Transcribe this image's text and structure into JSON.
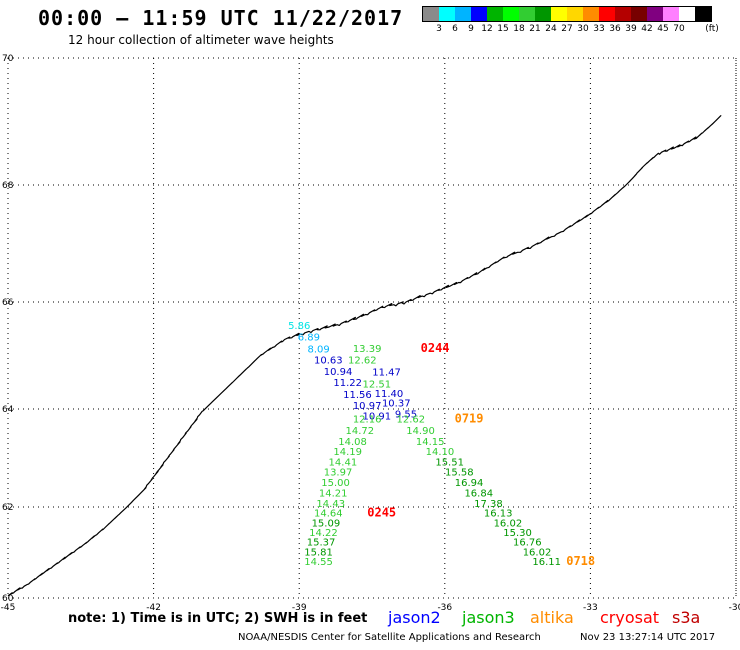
{
  "header": {
    "title": "00:00 – 11:59 UTC 11/22/2017",
    "subtitle": "12 hour collection of altimeter wave heights"
  },
  "color_scale": {
    "unit": "(ft)",
    "colors": [
      "#8a8a8a",
      "#00ffff",
      "#00b4ff",
      "#0000ff",
      "#00b400",
      "#00ff00",
      "#32cd32",
      "#009600",
      "#ffff00",
      "#ffd700",
      "#ff8c00",
      "#ff0000",
      "#b40000",
      "#780000",
      "#800080",
      "#ff80ff",
      "#ffffff",
      "#000000"
    ],
    "labels": [
      "3",
      "6",
      "9",
      "12",
      "15",
      "18",
      "21",
      "24",
      "27",
      "30",
      "33",
      "36",
      "39",
      "42",
      "45",
      "70"
    ]
  },
  "axes": {
    "lat_labels": [
      "70",
      "68",
      "66",
      "64",
      "62",
      "60"
    ],
    "lon_labels": [
      "-45",
      "-42",
      "-39",
      "-36",
      "-33",
      "-30"
    ]
  },
  "tracks": [
    {
      "satellite": "jason2",
      "time": "0244",
      "time_color": "#ff0000",
      "points": [
        {
          "lat": 65.5,
          "lon": -39.0,
          "v": "5.86",
          "c": "#00e5e5"
        },
        {
          "lat": 65.28,
          "lon": -38.8,
          "v": "6.89",
          "c": "#00b4ff"
        },
        {
          "lat": 65.06,
          "lon": -38.6,
          "v": "8.09",
          "c": "#00b4ff"
        },
        {
          "lat": 64.85,
          "lon": -38.4,
          "v": "10.63",
          "c": "#0000c8"
        },
        {
          "lat": 64.64,
          "lon": -38.2,
          "v": "10.94",
          "c": "#0000c8"
        },
        {
          "lat": 64.43,
          "lon": -38.0,
          "v": "11.22",
          "c": "#0000c8"
        },
        {
          "lat": 64.21,
          "lon": -37.8,
          "v": "11.56",
          "c": "#0000c8"
        },
        {
          "lat": 64.0,
          "lon": -37.6,
          "v": "10.97",
          "c": "#0000c8"
        },
        {
          "lat": 63.79,
          "lon": -37.4,
          "v": "10.91",
          "c": "#0000c8"
        },
        {
          "lat": 63.83,
          "lon": -36.8,
          "v": "9.55",
          "c": "#0000c8"
        },
        {
          "lat": 64.05,
          "lon": -37.0,
          "v": "10.37",
          "c": "#0000c8"
        },
        {
          "lat": 64.22,
          "lon": -37.15,
          "v": "11.40",
          "c": "#0000c8"
        },
        {
          "lat": 64.63,
          "lon": -37.2,
          "v": "11.47",
          "c": "#0000c8"
        }
      ]
    },
    {
      "satellite": "jason3",
      "time": "0245",
      "time_color": "#ff0000",
      "points": [
        {
          "lat": 65.07,
          "lon": -37.6,
          "v": "13.39",
          "c": "#32cd32"
        },
        {
          "lat": 64.85,
          "lon": -37.7,
          "v": "12.62",
          "c": "#32cd32"
        },
        {
          "lat": 64.4,
          "lon": -37.4,
          "v": "12.51",
          "c": "#32cd32"
        },
        {
          "lat": 63.72,
          "lon": -37.6,
          "v": "12.16",
          "c": "#32cd32"
        },
        {
          "lat": 63.49,
          "lon": -37.75,
          "v": "14.72",
          "c": "#32cd32"
        },
        {
          "lat": 63.27,
          "lon": -37.9,
          "v": "14.08",
          "c": "#32cd32"
        },
        {
          "lat": 63.06,
          "lon": -38.0,
          "v": "14.19",
          "c": "#32cd32"
        },
        {
          "lat": 62.85,
          "lon": -38.1,
          "v": "14.41",
          "c": "#32cd32"
        },
        {
          "lat": 62.64,
          "lon": -38.2,
          "v": "13.97",
          "c": "#32cd32"
        },
        {
          "lat": 62.43,
          "lon": -38.25,
          "v": "15.00",
          "c": "#32cd32"
        },
        {
          "lat": 62.21,
          "lon": -38.3,
          "v": "14.21",
          "c": "#32cd32"
        },
        {
          "lat": 62.0,
          "lon": -38.35,
          "v": "14.43",
          "c": "#32cd32"
        },
        {
          "lat": 61.79,
          "lon": -38.4,
          "v": "14.64",
          "c": "#32cd32"
        },
        {
          "lat": 61.57,
          "lon": -38.45,
          "v": "15.09",
          "c": "#009600"
        },
        {
          "lat": 61.36,
          "lon": -38.5,
          "v": "14.22",
          "c": "#32cd32"
        },
        {
          "lat": 61.15,
          "lon": -38.55,
          "v": "15.37",
          "c": "#009600"
        },
        {
          "lat": 60.93,
          "lon": -38.6,
          "v": "15.81",
          "c": "#009600"
        },
        {
          "lat": 60.72,
          "lon": -38.6,
          "v": "14.55",
          "c": "#32cd32"
        }
      ]
    },
    {
      "satellite": "altika",
      "time": "0719",
      "time_color": "#ff8c00",
      "points": [
        {
          "lat": 63.72,
          "lon": -36.7,
          "v": "12.62",
          "c": "#32cd32"
        },
        {
          "lat": 63.49,
          "lon": -36.5,
          "v": "14.90",
          "c": "#32cd32"
        },
        {
          "lat": 63.27,
          "lon": -36.3,
          "v": "14.15",
          "c": "#32cd32"
        },
        {
          "lat": 63.06,
          "lon": -36.1,
          "v": "14.10",
          "c": "#32cd32"
        },
        {
          "lat": 62.85,
          "lon": -35.9,
          "v": "15.51",
          "c": "#009600"
        },
        {
          "lat": 62.64,
          "lon": -35.7,
          "v": "15.58",
          "c": "#009600"
        },
        {
          "lat": 62.43,
          "lon": -35.5,
          "v": "16.94",
          "c": "#009600"
        },
        {
          "lat": 62.21,
          "lon": -35.3,
          "v": "16.84",
          "c": "#009600"
        },
        {
          "lat": 62.0,
          "lon": -35.1,
          "v": "17.38",
          "c": "#009600"
        },
        {
          "lat": 61.79,
          "lon": -34.9,
          "v": "16.13",
          "c": "#009600"
        },
        {
          "lat": 61.57,
          "lon": -34.7,
          "v": "16.02",
          "c": "#009600"
        },
        {
          "lat": 61.36,
          "lon": -34.5,
          "v": "15.30",
          "c": "#009600"
        },
        {
          "lat": 61.15,
          "lon": -34.3,
          "v": "16.76",
          "c": "#009600"
        },
        {
          "lat": 60.93,
          "lon": -34.1,
          "v": "16.02",
          "c": "#009600"
        },
        {
          "lat": 60.72,
          "lon": -33.9,
          "v": "16.11",
          "c": "#009600"
        }
      ]
    },
    {
      "satellite": "altika",
      "time": "0718",
      "time_color": "#ff8c00",
      "points": []
    }
  ],
  "time_labels": [
    {
      "t": "0244",
      "lat": 65.07,
      "lon": -36.2,
      "c": "#ff0000"
    },
    {
      "t": "0719",
      "lat": 63.72,
      "lon": -35.5,
      "c": "#ff8c00"
    },
    {
      "t": "0245",
      "lat": 61.79,
      "lon": -37.3,
      "c": "#ff0000"
    },
    {
      "t": "0718",
      "lat": 60.72,
      "lon": -33.2,
      "c": "#ff8c00"
    }
  ],
  "legend": {
    "note": "note: 1) Time is in UTC; 2) SWH is in feet",
    "satellites": [
      {
        "name": "jason2",
        "color": "#0000ff"
      },
      {
        "name": "jason3",
        "color": "#00b400"
      },
      {
        "name": "altika",
        "color": "#ff8c00"
      },
      {
        "name": "cryosat",
        "color": "#ff0000"
      },
      {
        "name": "s3a",
        "color": "#c00000"
      }
    ]
  },
  "footer": {
    "source": "NOAA/NESDIS Center for Satellite Applications and Research",
    "timestamp": "Nov 23 13:27:14 UTC 2017"
  }
}
